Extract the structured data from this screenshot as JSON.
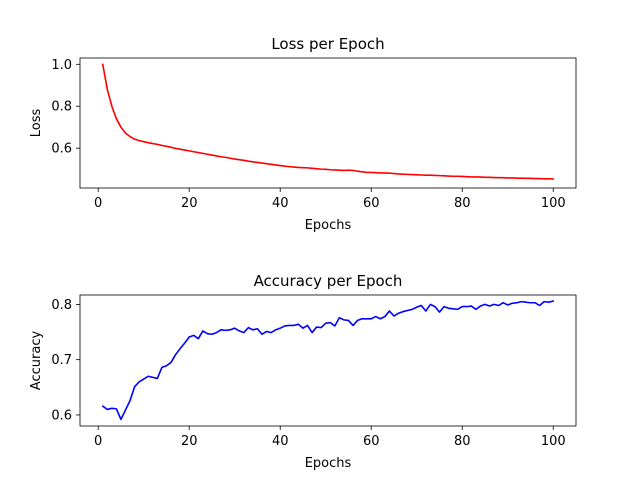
{
  "chart_data": [
    {
      "type": "line",
      "title": "Loss per Epoch",
      "xlabel": "Epochs",
      "ylabel": "Loss",
      "xlim": [
        -4.0,
        105.0
      ],
      "ylim": [
        0.41,
        1.03
      ],
      "xticks": [
        0,
        20,
        40,
        60,
        80,
        100
      ],
      "xtick_labels": [
        "0",
        "20",
        "40",
        "60",
        "80",
        "100"
      ],
      "yticks": [
        0.6,
        0.8,
        1.0
      ],
      "ytick_labels": [
        "0.6",
        "0.8",
        "1.0"
      ],
      "grid": false,
      "series": [
        {
          "color": "#ff0000",
          "x": [
            1,
            2,
            3,
            4,
            5,
            6,
            7,
            8,
            9,
            10,
            11,
            12,
            13,
            14,
            15,
            16,
            17,
            18,
            19,
            20,
            21,
            22,
            23,
            24,
            25,
            26,
            27,
            28,
            29,
            30,
            31,
            32,
            33,
            34,
            35,
            36,
            37,
            38,
            39,
            40,
            41,
            42,
            43,
            44,
            45,
            46,
            47,
            48,
            49,
            50,
            51,
            52,
            53,
            54,
            55,
            56,
            57,
            58,
            59,
            60,
            61,
            62,
            63,
            64,
            65,
            66,
            67,
            68,
            69,
            70,
            71,
            72,
            73,
            74,
            75,
            76,
            77,
            78,
            79,
            80,
            81,
            82,
            83,
            84,
            85,
            86,
            87,
            88,
            89,
            90,
            91,
            92,
            93,
            94,
            95,
            96,
            97,
            98,
            99,
            100
          ],
          "values": [
            1.0,
            0.88,
            0.8,
            0.74,
            0.7,
            0.672,
            0.655,
            0.643,
            0.636,
            0.631,
            0.626,
            0.622,
            0.618,
            0.613,
            0.609,
            0.604,
            0.599,
            0.595,
            0.591,
            0.587,
            0.583,
            0.579,
            0.575,
            0.571,
            0.567,
            0.563,
            0.559,
            0.556,
            0.552,
            0.548,
            0.545,
            0.542,
            0.538,
            0.535,
            0.532,
            0.529,
            0.526,
            0.523,
            0.52,
            0.517,
            0.514,
            0.512,
            0.51,
            0.508,
            0.507,
            0.506,
            0.504,
            0.502,
            0.5,
            0.499,
            0.497,
            0.496,
            0.495,
            0.494,
            0.495,
            0.494,
            0.49,
            0.487,
            0.485,
            0.484,
            0.483,
            0.482,
            0.481,
            0.481,
            0.479,
            0.477,
            0.476,
            0.475,
            0.474,
            0.473,
            0.472,
            0.471,
            0.471,
            0.47,
            0.469,
            0.468,
            0.467,
            0.466,
            0.466,
            0.465,
            0.464,
            0.463,
            0.463,
            0.462,
            0.461,
            0.461,
            0.46,
            0.459,
            0.459,
            0.458,
            0.458,
            0.457,
            0.457,
            0.456,
            0.456,
            0.455,
            0.455,
            0.454,
            0.454,
            0.453
          ]
        }
      ]
    },
    {
      "type": "line",
      "title": "Accuracy per Epoch",
      "xlabel": "Epochs",
      "ylabel": "Accuracy",
      "xlim": [
        -4.0,
        105.0
      ],
      "ylim": [
        0.58,
        0.817
      ],
      "xticks": [
        0,
        20,
        40,
        60,
        80,
        100
      ],
      "xtick_labels": [
        "0",
        "20",
        "40",
        "60",
        "80",
        "100"
      ],
      "yticks": [
        0.6,
        0.7,
        0.8
      ],
      "ytick_labels": [
        "0.6",
        "0.7",
        "0.8"
      ],
      "grid": false,
      "series": [
        {
          "color": "#0000ff",
          "x": [
            1,
            2,
            3,
            4,
            5,
            6,
            7,
            8,
            9,
            10,
            11,
            12,
            13,
            14,
            15,
            16,
            17,
            18,
            19,
            20,
            21,
            22,
            23,
            24,
            25,
            26,
            27,
            28,
            29,
            30,
            31,
            32,
            33,
            34,
            35,
            36,
            37,
            38,
            39,
            40,
            41,
            42,
            43,
            44,
            45,
            46,
            47,
            48,
            49,
            50,
            51,
            52,
            53,
            54,
            55,
            56,
            57,
            58,
            59,
            60,
            61,
            62,
            63,
            64,
            65,
            66,
            67,
            68,
            69,
            70,
            71,
            72,
            73,
            74,
            75,
            76,
            77,
            78,
            79,
            80,
            81,
            82,
            83,
            84,
            85,
            86,
            87,
            88,
            89,
            90,
            91,
            92,
            93,
            94,
            95,
            96,
            97,
            98,
            99,
            100
          ],
          "values": [
            0.616,
            0.61,
            0.612,
            0.611,
            0.592,
            0.609,
            0.626,
            0.651,
            0.66,
            0.665,
            0.67,
            0.668,
            0.666,
            0.686,
            0.689,
            0.695,
            0.709,
            0.72,
            0.73,
            0.741,
            0.744,
            0.738,
            0.752,
            0.747,
            0.746,
            0.749,
            0.754,
            0.753,
            0.754,
            0.757,
            0.752,
            0.749,
            0.758,
            0.754,
            0.756,
            0.746,
            0.751,
            0.749,
            0.754,
            0.757,
            0.761,
            0.762,
            0.762,
            0.764,
            0.757,
            0.762,
            0.749,
            0.759,
            0.758,
            0.766,
            0.767,
            0.761,
            0.776,
            0.772,
            0.771,
            0.762,
            0.771,
            0.774,
            0.774,
            0.774,
            0.778,
            0.774,
            0.778,
            0.788,
            0.779,
            0.784,
            0.787,
            0.789,
            0.791,
            0.795,
            0.798,
            0.788,
            0.8,
            0.796,
            0.786,
            0.796,
            0.793,
            0.792,
            0.791,
            0.796,
            0.796,
            0.797,
            0.791,
            0.797,
            0.8,
            0.797,
            0.8,
            0.798,
            0.803,
            0.799,
            0.802,
            0.803,
            0.805,
            0.804,
            0.803,
            0.803,
            0.798,
            0.805,
            0.804,
            0.806
          ]
        }
      ]
    }
  ]
}
